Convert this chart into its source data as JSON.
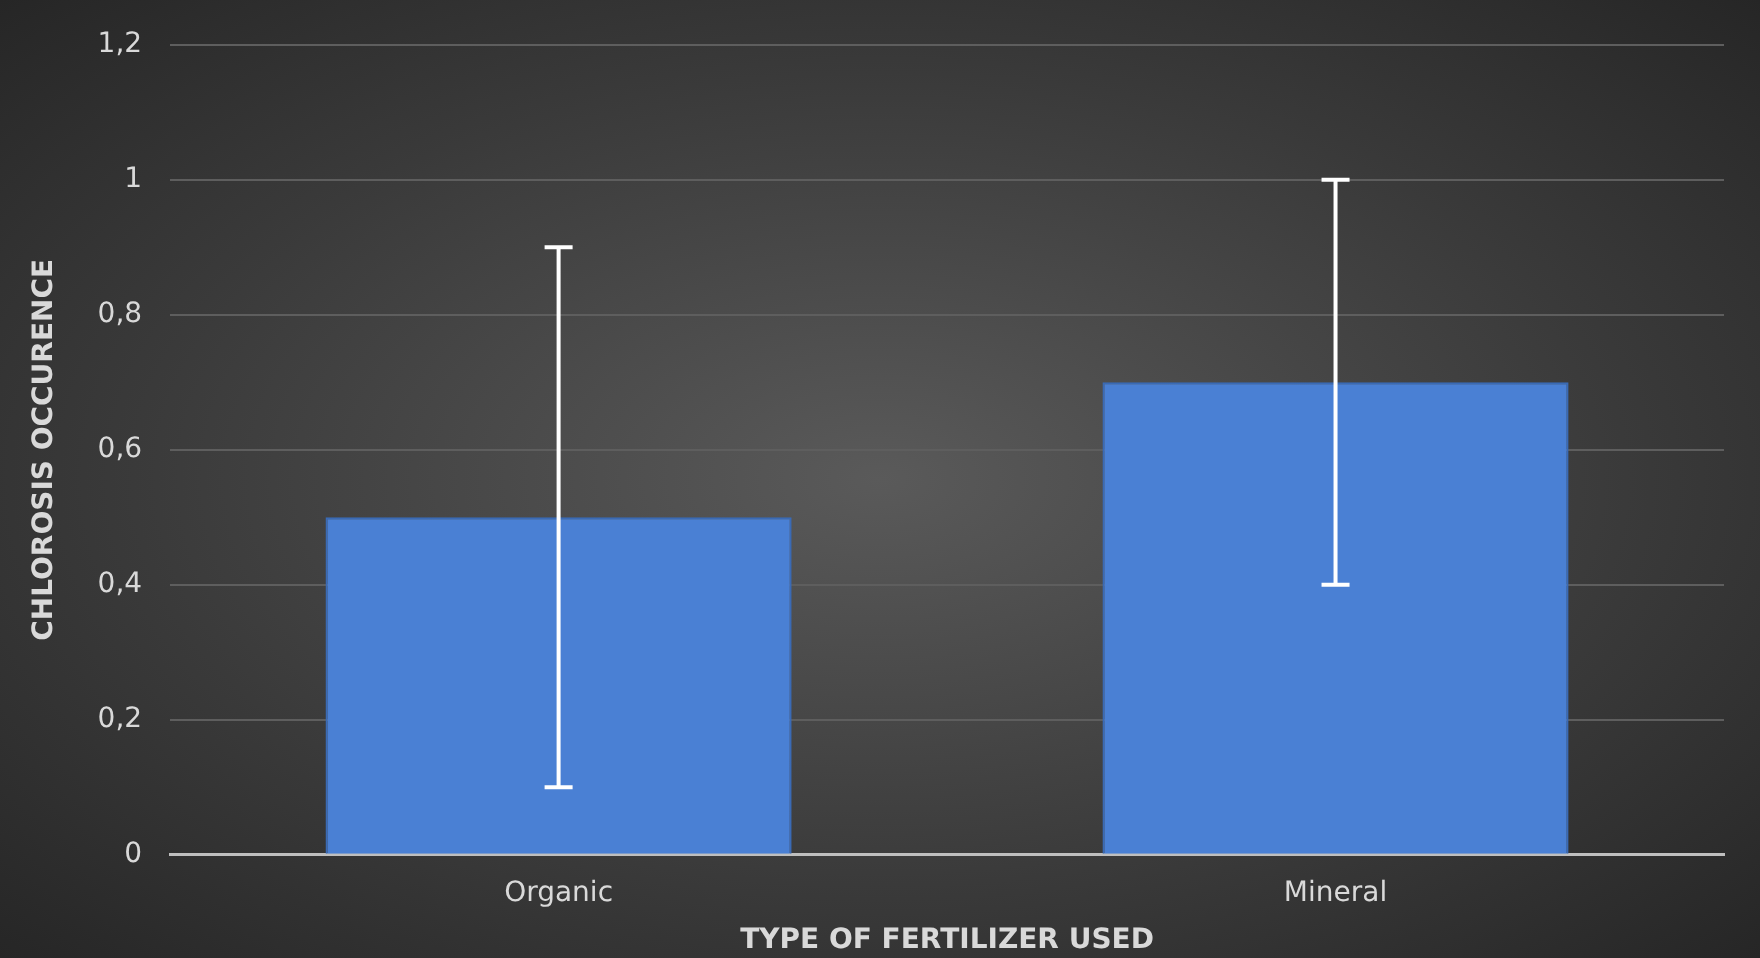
{
  "chart_data": {
    "type": "bar",
    "xlabel": "TYPE OF FERTILIZER USED",
    "ylabel": "CHLOROSIS OCCURENCE",
    "categories": [
      "Organic",
      "Mineral"
    ],
    "values": [
      0.5,
      0.7
    ],
    "errors": [
      0.4,
      0.3
    ],
    "color": "#4a80d4",
    "ylim": [
      0,
      1.2
    ],
    "yticks": [
      {
        "value": 0,
        "label": "0"
      },
      {
        "value": 0.2,
        "label": "0,2"
      },
      {
        "value": 0.4,
        "label": "0,4"
      },
      {
        "value": 0.6,
        "label": "0,6"
      },
      {
        "value": 0.8,
        "label": "0,8"
      },
      {
        "value": 1,
        "label": "1"
      },
      {
        "value": 1.2,
        "label": "1,2"
      }
    ],
    "grid": "y"
  }
}
